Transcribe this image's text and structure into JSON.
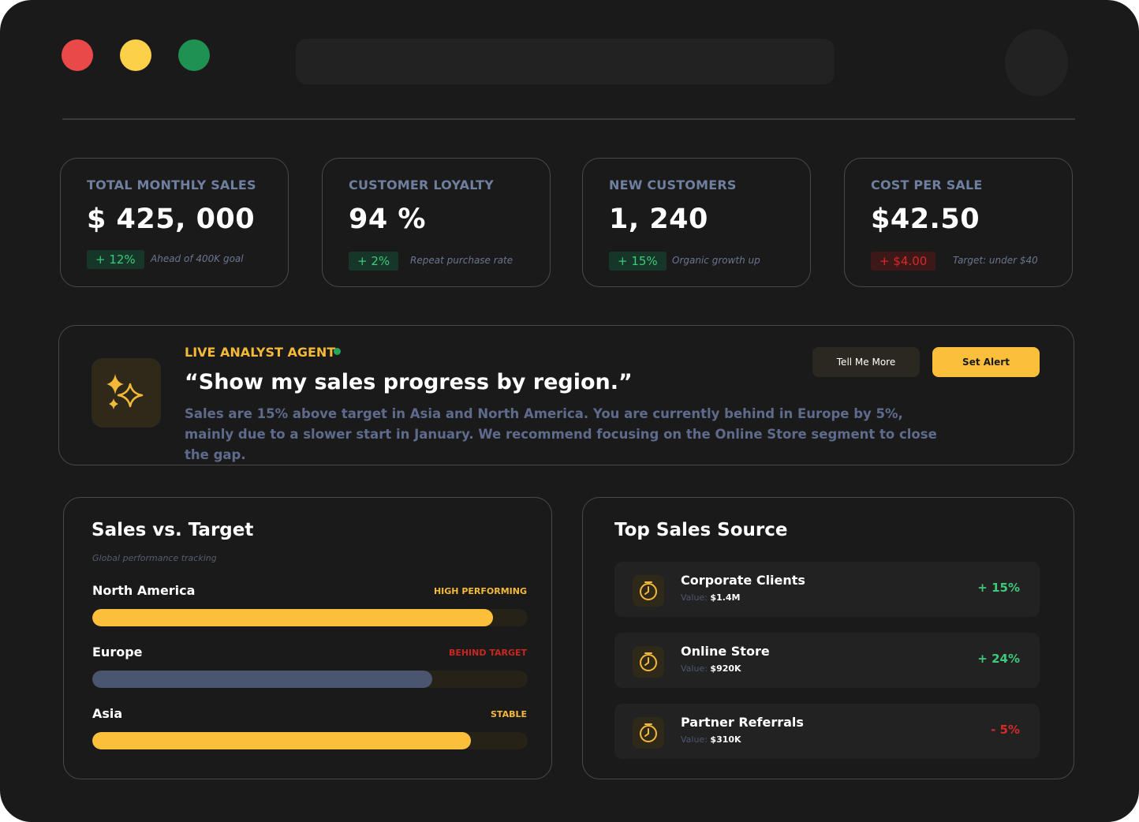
{
  "kpis": [
    {
      "label": "TOTAL MONTHLY SALES",
      "value": "$ 425, 000",
      "delta": "+ 12%",
      "note": "Ahead of 400K goal"
    },
    {
      "label": "CUSTOMER LOYALTY",
      "value": "94 %",
      "delta": "+ 2%",
      "note": "Repeat purchase rate"
    },
    {
      "label": "NEW CUSTOMERS",
      "value": "1, 240",
      "delta": "+ 15%",
      "note": "Organic growth up"
    },
    {
      "label": "COST PER SALE",
      "value": "$42.50",
      "delta": "+ $4.00",
      "note": "Target: under $40"
    }
  ],
  "agent": {
    "title": "LIVE ANALYST AGENT",
    "quote": "“Show my sales progress by region.”",
    "text": "Sales are 15% above target in Asia and North America. You are currently behind in Europe by 5%, mainly due to a slower start in January. We recommend focusing on the Online Store segment to close the gap.",
    "more_label": "Tell Me More",
    "alert_label": "Set Alert"
  },
  "sales_target": {
    "title": "Sales vs. Target",
    "subtitle": "Global performance tracking",
    "regions": [
      {
        "name": "North America",
        "status": "HIGH PERFORMING",
        "progress": 0.92,
        "color": "#fbc03b",
        "status_color": "#f5b93a"
      },
      {
        "name": "Europe",
        "status": "BEHIND TARGET",
        "progress": 0.78,
        "color": "#4a5570",
        "status_color": "#c7271f"
      },
      {
        "name": "Asia",
        "status": "STABLE",
        "progress": 0.87,
        "color": "#fbc03b",
        "status_color": "#f5b93a"
      }
    ]
  },
  "top_sources": {
    "title": "Top Sales Source",
    "value_label": "Value:",
    "items": [
      {
        "name": "Corporate Clients",
        "value": "$1.4M",
        "delta": "+ 15%",
        "trend": "up"
      },
      {
        "name": "Online Store",
        "value": "$920K",
        "delta": "+ 24%",
        "trend": "up"
      },
      {
        "name": "Partner Referrals",
        "value": "$310K",
        "delta": "- 5%",
        "trend": "down"
      }
    ]
  },
  "colors": {
    "accent": "#fbc03b",
    "positive": "#3ec97a",
    "negative": "#d62a2a",
    "background": "#1a1a1a"
  },
  "icons": {
    "agent": "sparkles-icon",
    "source": "clock-icon"
  }
}
